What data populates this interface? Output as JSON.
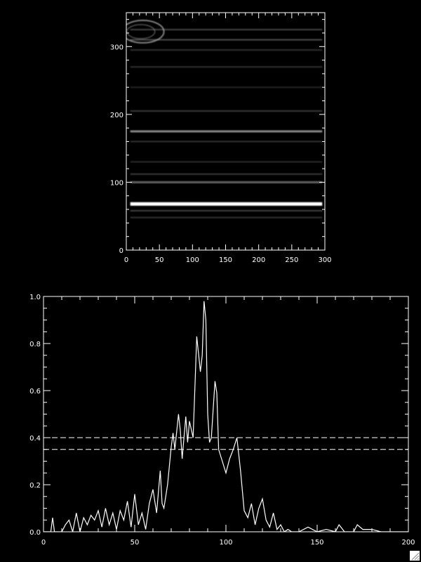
{
  "chart_data": [
    {
      "type": "heatmap",
      "xlim": [
        0,
        300
      ],
      "ylim": [
        0,
        350
      ],
      "x_ticks": [
        0,
        50,
        100,
        150,
        200,
        250,
        300
      ],
      "y_ticks": [
        0,
        100,
        200,
        300
      ],
      "colormap": "grayscale",
      "bands": [
        {
          "y": 68,
          "intensity": 1.0,
          "width": 5
        },
        {
          "y": 58,
          "intensity": 0.3,
          "width": 2
        },
        {
          "y": 48,
          "intensity": 0.2,
          "width": 2
        },
        {
          "y": 100,
          "intensity": 0.45,
          "width": 3
        },
        {
          "y": 112,
          "intensity": 0.25,
          "width": 2
        },
        {
          "y": 130,
          "intensity": 0.15,
          "width": 2
        },
        {
          "y": 160,
          "intensity": 0.2,
          "width": 2
        },
        {
          "y": 175,
          "intensity": 0.6,
          "width": 3
        },
        {
          "y": 205,
          "intensity": 0.25,
          "width": 2
        },
        {
          "y": 240,
          "intensity": 0.12,
          "width": 2
        },
        {
          "y": 270,
          "intensity": 0.2,
          "width": 2
        },
        {
          "y": 295,
          "intensity": 0.2,
          "width": 2
        },
        {
          "y": 310,
          "intensity": 0.35,
          "width": 2
        },
        {
          "y": 325,
          "intensity": 0.3,
          "width": 2
        }
      ]
    },
    {
      "type": "line",
      "xlim": [
        0,
        200
      ],
      "ylim": [
        0,
        1.0
      ],
      "x_ticks": [
        0,
        50,
        100,
        150,
        200
      ],
      "y_ticks": [
        "0.0",
        "0.2",
        "0.4",
        "0.6",
        "0.8",
        "1.0"
      ],
      "thresholds": [
        0.4,
        0.35
      ],
      "x": [
        0,
        2,
        4,
        5,
        6,
        8,
        10,
        12,
        14,
        16,
        18,
        20,
        22,
        24,
        26,
        28,
        30,
        32,
        34,
        36,
        38,
        40,
        42,
        44,
        46,
        48,
        50,
        52,
        54,
        56,
        58,
        60,
        62,
        64,
        65,
        66,
        68,
        70,
        71,
        72,
        74,
        75,
        76,
        78,
        79,
        80,
        82,
        84,
        86,
        87,
        88,
        89,
        90,
        91,
        92,
        94,
        95,
        96,
        98,
        100,
        102,
        104,
        106,
        108,
        110,
        112,
        114,
        116,
        118,
        120,
        122,
        124,
        126,
        128,
        130,
        132,
        134,
        136,
        140,
        145,
        150,
        155,
        160,
        162,
        165,
        170,
        172,
        175,
        180,
        185,
        190,
        195,
        200
      ],
      "y": [
        0,
        0,
        0,
        0.06,
        0,
        0,
        0,
        0.03,
        0.05,
        0,
        0.08,
        0,
        0.06,
        0.03,
        0.07,
        0.05,
        0.09,
        0.02,
        0.1,
        0.03,
        0.08,
        0.01,
        0.09,
        0.05,
        0.13,
        0.02,
        0.16,
        0.03,
        0.08,
        0.01,
        0.12,
        0.18,
        0.08,
        0.26,
        0.12,
        0.1,
        0.2,
        0.36,
        0.42,
        0.35,
        0.5,
        0.43,
        0.31,
        0.49,
        0.38,
        0.47,
        0.4,
        0.83,
        0.68,
        0.75,
        0.98,
        0.9,
        0.5,
        0.38,
        0.4,
        0.64,
        0.59,
        0.35,
        0.3,
        0.25,
        0.31,
        0.35,
        0.4,
        0.26,
        0.09,
        0.06,
        0.12,
        0.03,
        0.1,
        0.14,
        0.05,
        0.02,
        0.08,
        0.01,
        0.03,
        0,
        0.01,
        0,
        0,
        0.02,
        0,
        0.01,
        0,
        0.03,
        0,
        0,
        0.03,
        0.01,
        0.01,
        0,
        0,
        0,
        0
      ]
    }
  ]
}
